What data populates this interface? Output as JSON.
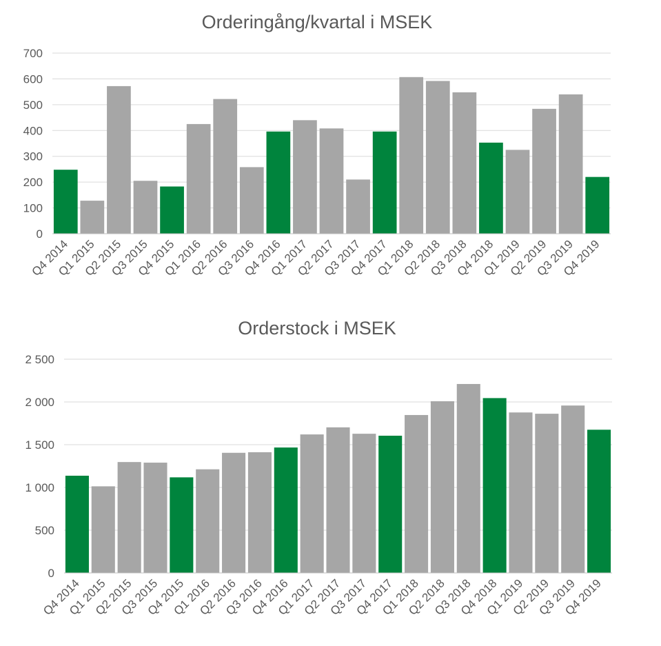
{
  "colors": {
    "highlight": "#00843d",
    "normal": "#a6a6a6"
  },
  "chart_data": [
    {
      "type": "bar",
      "title": "Orderingång/kvartal i MSEK",
      "xlabel": "",
      "ylabel": "",
      "ylim": [
        0,
        700
      ],
      "yticks": [
        0,
        100,
        200,
        300,
        400,
        500,
        600,
        700
      ],
      "ytick_labels": [
        "0",
        "100",
        "200",
        "300",
        "400",
        "500",
        "600",
        "700"
      ],
      "grid": true,
      "categories": [
        "Q4 2014",
        "Q1 2015",
        "Q2 2015",
        "Q3 2015",
        "Q4 2015",
        "Q1 2016",
        "Q2 2016",
        "Q3 2016",
        "Q4 2016",
        "Q1 2017",
        "Q2 2017",
        "Q3 2017",
        "Q4 2017",
        "Q1 2018",
        "Q2 2018",
        "Q3 2018",
        "Q4 2018",
        "Q1 2019",
        "Q2 2019",
        "Q3 2019",
        "Q4 2019"
      ],
      "values": [
        248,
        128,
        572,
        205,
        183,
        425,
        522,
        258,
        396,
        440,
        408,
        210,
        396,
        607,
        592,
        548,
        353,
        325,
        484,
        540,
        220
      ],
      "highlighted": [
        true,
        false,
        false,
        false,
        true,
        false,
        false,
        false,
        true,
        false,
        false,
        false,
        true,
        false,
        false,
        false,
        true,
        false,
        false,
        false,
        true
      ]
    },
    {
      "type": "bar",
      "title": "Orderstock i MSEK",
      "xlabel": "",
      "ylabel": "",
      "ylim": [
        0,
        2500
      ],
      "yticks": [
        0,
        500,
        1000,
        1500,
        2000,
        2500
      ],
      "ytick_labels": [
        "0",
        "500",
        "1 000",
        "1 500",
        "2 000",
        "2 500"
      ],
      "grid": true,
      "categories": [
        "Q4 2014",
        "Q1 2015",
        "Q2 2015",
        "Q3 2015",
        "Q4 2015",
        "Q1 2016",
        "Q2 2016",
        "Q3 2016",
        "Q4 2016",
        "Q1 2017",
        "Q2 2017",
        "Q3 2017",
        "Q4 2017",
        "Q1 2018",
        "Q2 2018",
        "Q3 2018",
        "Q4 2018",
        "Q1 2019",
        "Q2 2019",
        "Q3 2019",
        "Q4 2019"
      ],
      "values": [
        1137,
        1013,
        1297,
        1290,
        1118,
        1212,
        1405,
        1412,
        1467,
        1620,
        1703,
        1628,
        1605,
        1847,
        2008,
        2210,
        2045,
        1877,
        1862,
        1958,
        1675
      ],
      "highlighted": [
        true,
        false,
        false,
        false,
        true,
        false,
        false,
        false,
        true,
        false,
        false,
        false,
        true,
        false,
        false,
        false,
        true,
        false,
        false,
        false,
        true
      ]
    }
  ]
}
